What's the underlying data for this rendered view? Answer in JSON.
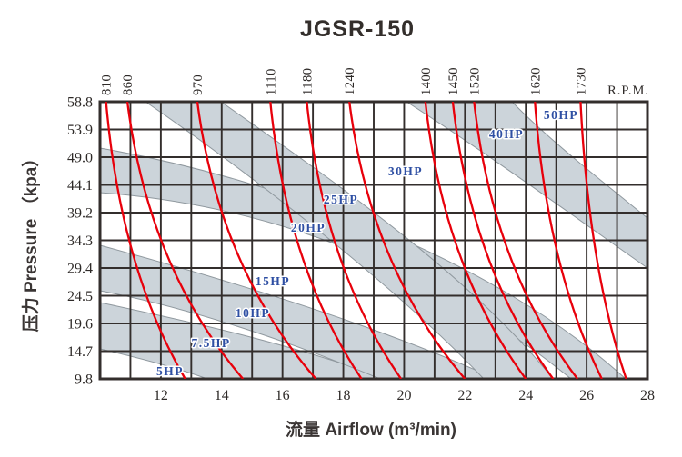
{
  "chart_data": {
    "type": "line",
    "title": "JGSR-150",
    "x_axis": {
      "label": "流量 Airflow (m³/min)",
      "ticks": [
        12,
        14,
        16,
        18,
        20,
        22,
        24,
        26,
        28
      ],
      "range": [
        10,
        28
      ],
      "grid_step": 1
    },
    "y_axis": {
      "label": "压力 Pressure （kpa）",
      "ticks": [
        "9.8",
        "14.7",
        "19.6",
        "24.5",
        "29.4",
        "34.3",
        "39.2",
        "44.1",
        "49.0",
        "53.9",
        "58.8"
      ],
      "range": [
        9.8,
        58.8
      ],
      "grid_step": 4.9
    },
    "rpm_axis_label": "R.P.M.",
    "series": [
      {
        "rpm": 810,
        "airflow_at_58_8_kpa": 10.2,
        "airflow_at_9_8_kpa": 12.8
      },
      {
        "rpm": 860,
        "airflow_at_58_8_kpa": 10.9,
        "airflow_at_9_8_kpa": 14.7
      },
      {
        "rpm": 970,
        "airflow_at_58_8_kpa": 13.2,
        "airflow_at_9_8_kpa": 17.1
      },
      {
        "rpm": 1110,
        "airflow_at_58_8_kpa": 15.6,
        "airflow_at_9_8_kpa": 18.6
      },
      {
        "rpm": 1180,
        "airflow_at_58_8_kpa": 16.8,
        "airflow_at_9_8_kpa": 19.9
      },
      {
        "rpm": 1240,
        "airflow_at_58_8_kpa": 18.2,
        "airflow_at_9_8_kpa": 22.0
      },
      {
        "rpm": 1400,
        "airflow_at_58_8_kpa": 20.7,
        "airflow_at_9_8_kpa": 24.0
      },
      {
        "rpm": 1450,
        "airflow_at_58_8_kpa": 21.6,
        "airflow_at_9_8_kpa": 24.9
      },
      {
        "rpm": 1520,
        "airflow_at_58_8_kpa": 22.3,
        "airflow_at_9_8_kpa": 25.7
      },
      {
        "rpm": 1620,
        "airflow_at_58_8_kpa": 24.3,
        "airflow_at_9_8_kpa": 26.5
      },
      {
        "rpm": 1730,
        "airflow_at_58_8_kpa": 25.8,
        "airflow_at_9_8_kpa": 27.3
      }
    ],
    "power_labels": [
      "5HP",
      "7.5HP",
      "10HP",
      "15HP",
      "20HP",
      "25HP",
      "30HP",
      "40HP",
      "50HP"
    ],
    "colors": {
      "rpm_curve": "#e8000b",
      "power_band_fill": "#ccd4da",
      "power_band_edge": "#8f989e",
      "grid_line": "#332e2c",
      "power_label_text": "#2e4fa3"
    }
  }
}
